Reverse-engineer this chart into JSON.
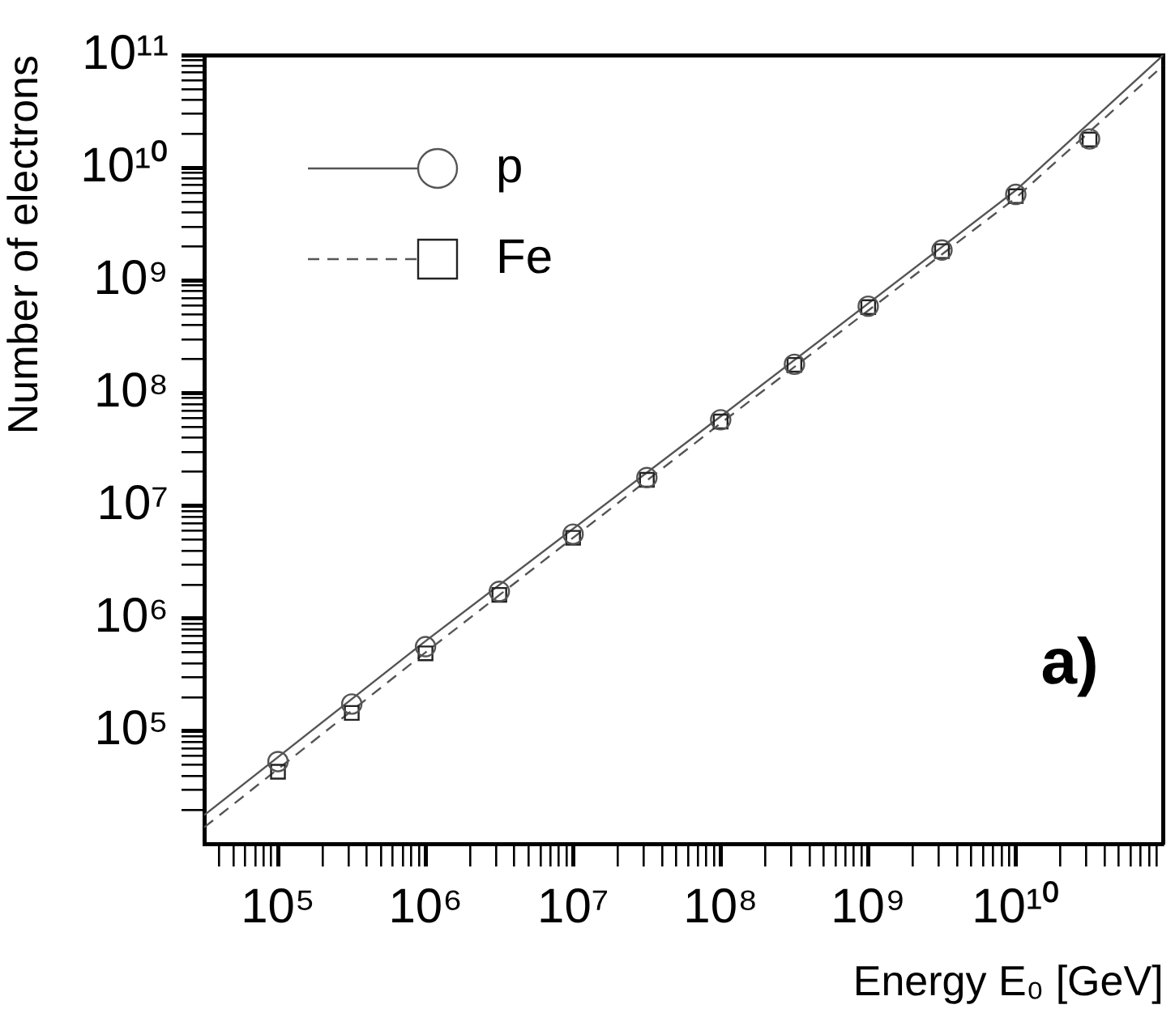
{
  "chart_data": {
    "type": "scatter",
    "xlabel": "Energy E₀ [GeV]",
    "ylabel": "Number of electrons",
    "annotations": [
      "a)"
    ],
    "log": "xy",
    "grid": false,
    "legend": "top left",
    "xlim": [
      31623,
      100000000000.0
    ],
    "ylim": [
      10000.0,
      100000000000.0
    ],
    "xticks": [
      {
        "value": 40000.0,
        "label": null
      },
      {
        "value": 50000.0,
        "label": null
      },
      {
        "value": 60000.0,
        "label": null
      },
      {
        "value": 70000.0,
        "label": null
      },
      {
        "value": 80000.0,
        "label": null
      },
      {
        "value": 90000.0,
        "label": null
      },
      {
        "value": 100000.0,
        "label": "10⁵"
      },
      {
        "value": 200000.0,
        "label": null
      },
      {
        "value": 300000.0,
        "label": null
      },
      {
        "value": 400000.0,
        "label": null
      },
      {
        "value": 500000.0,
        "label": null
      },
      {
        "value": 600000.0,
        "label": null
      },
      {
        "value": 700000.0,
        "label": null
      },
      {
        "value": 800000.0,
        "label": null
      },
      {
        "value": 900000.0,
        "label": null
      },
      {
        "value": 1000000.0,
        "label": "10⁶"
      },
      {
        "value": 2000000.0,
        "label": null
      },
      {
        "value": 3000000.0,
        "label": null
      },
      {
        "value": 4000000.0,
        "label": null
      },
      {
        "value": 5000000.0,
        "label": null
      },
      {
        "value": 6000000.0,
        "label": null
      },
      {
        "value": 7000000.0,
        "label": null
      },
      {
        "value": 8000000.0,
        "label": null
      },
      {
        "value": 9000000.0,
        "label": null
      },
      {
        "value": 10000000.0,
        "label": "10⁷"
      },
      {
        "value": 20000000.0,
        "label": null
      },
      {
        "value": 30000000.0,
        "label": null
      },
      {
        "value": 40000000.0,
        "label": null
      },
      {
        "value": 50000000.0,
        "label": null
      },
      {
        "value": 60000000.0,
        "label": null
      },
      {
        "value": 70000000.0,
        "label": null
      },
      {
        "value": 80000000.0,
        "label": null
      },
      {
        "value": 90000000.0,
        "label": null
      },
      {
        "value": 100000000.0,
        "label": "10⁸"
      },
      {
        "value": 200000000.0,
        "label": null
      },
      {
        "value": 300000000.0,
        "label": null
      },
      {
        "value": 400000000.0,
        "label": null
      },
      {
        "value": 500000000.0,
        "label": null
      },
      {
        "value": 600000000.0,
        "label": null
      },
      {
        "value": 700000000.0,
        "label": null
      },
      {
        "value": 800000000.0,
        "label": null
      },
      {
        "value": 900000000.0,
        "label": null
      },
      {
        "value": 1000000000.0,
        "label": "10⁹"
      },
      {
        "value": 2000000000.0,
        "label": null
      },
      {
        "value": 3000000000.0,
        "label": null
      },
      {
        "value": 4000000000.0,
        "label": null
      },
      {
        "value": 5000000000.0,
        "label": null
      },
      {
        "value": 6000000000.0,
        "label": null
      },
      {
        "value": 7000000000.0,
        "label": null
      },
      {
        "value": 8000000000.0,
        "label": null
      },
      {
        "value": 9000000000.0,
        "label": null
      },
      {
        "value": 10000000000.0,
        "label": "10¹⁰"
      },
      {
        "value": 20000000000.0,
        "label": null
      },
      {
        "value": 30000000000.0,
        "label": null
      },
      {
        "value": 40000000000.0,
        "label": null
      },
      {
        "value": 50000000000.0,
        "label": null
      },
      {
        "value": 60000000000.0,
        "label": null
      },
      {
        "value": 70000000000.0,
        "label": null
      },
      {
        "value": 80000000000.0,
        "label": null
      },
      {
        "value": 90000000000.0,
        "label": null
      }
    ],
    "yticks": [
      {
        "value": 20000.0,
        "label": null
      },
      {
        "value": 30000.0,
        "label": null
      },
      {
        "value": 40000.0,
        "label": null
      },
      {
        "value": 50000.0,
        "label": null
      },
      {
        "value": 60000.0,
        "label": null
      },
      {
        "value": 70000.0,
        "label": null
      },
      {
        "value": 80000.0,
        "label": null
      },
      {
        "value": 90000.0,
        "label": null
      },
      {
        "value": 100000.0,
        "label": "10⁵"
      },
      {
        "value": 200000.0,
        "label": null
      },
      {
        "value": 300000.0,
        "label": null
      },
      {
        "value": 400000.0,
        "label": null
      },
      {
        "value": 500000.0,
        "label": null
      },
      {
        "value": 600000.0,
        "label": null
      },
      {
        "value": 700000.0,
        "label": null
      },
      {
        "value": 800000.0,
        "label": null
      },
      {
        "value": 900000.0,
        "label": null
      },
      {
        "value": 1000000.0,
        "label": "10⁶"
      },
      {
        "value": 2000000.0,
        "label": null
      },
      {
        "value": 3000000.0,
        "label": null
      },
      {
        "value": 4000000.0,
        "label": null
      },
      {
        "value": 5000000.0,
        "label": null
      },
      {
        "value": 6000000.0,
        "label": null
      },
      {
        "value": 7000000.0,
        "label": null
      },
      {
        "value": 8000000.0,
        "label": null
      },
      {
        "value": 9000000.0,
        "label": null
      },
      {
        "value": 10000000.0,
        "label": "10⁷"
      },
      {
        "value": 20000000.0,
        "label": null
      },
      {
        "value": 30000000.0,
        "label": null
      },
      {
        "value": 40000000.0,
        "label": null
      },
      {
        "value": 50000000.0,
        "label": null
      },
      {
        "value": 60000000.0,
        "label": null
      },
      {
        "value": 70000000.0,
        "label": null
      },
      {
        "value": 80000000.0,
        "label": null
      },
      {
        "value": 90000000.0,
        "label": null
      },
      {
        "value": 100000000.0,
        "label": "10⁸"
      },
      {
        "value": 200000000.0,
        "label": null
      },
      {
        "value": 300000000.0,
        "label": null
      },
      {
        "value": 400000000.0,
        "label": null
      },
      {
        "value": 500000000.0,
        "label": null
      },
      {
        "value": 600000000.0,
        "label": null
      },
      {
        "value": 700000000.0,
        "label": null
      },
      {
        "value": 800000000.0,
        "label": null
      },
      {
        "value": 900000000.0,
        "label": null
      },
      {
        "value": 1000000000.0,
        "label": "10⁹"
      },
      {
        "value": 2000000000.0,
        "label": null
      },
      {
        "value": 3000000000.0,
        "label": null
      },
      {
        "value": 4000000000.0,
        "label": null
      },
      {
        "value": 5000000000.0,
        "label": null
      },
      {
        "value": 6000000000.0,
        "label": null
      },
      {
        "value": 7000000000.0,
        "label": null
      },
      {
        "value": 8000000000.0,
        "label": null
      },
      {
        "value": 9000000000.0,
        "label": null
      },
      {
        "value": 10000000000.0,
        "label": "10¹⁰"
      },
      {
        "value": 20000000000.0,
        "label": null
      },
      {
        "value": 30000000000.0,
        "label": null
      },
      {
        "value": 40000000000.0,
        "label": null
      },
      {
        "value": 50000000000.0,
        "label": null
      },
      {
        "value": 60000000000.0,
        "label": null
      },
      {
        "value": 70000000000.0,
        "label": null
      },
      {
        "value": 80000000000.0,
        "label": null
      },
      {
        "value": 90000000000.0,
        "label": null
      },
      {
        "value": 100000000000.0,
        "label": "10¹¹"
      }
    ],
    "series": [
      {
        "name": "p",
        "type": "scatter",
        "marker": "circle",
        "color": "#555555",
        "x": [
          100000.0,
          316228,
          1000000.0,
          3162278,
          10000000.0,
          31622777,
          100000000.0,
          316227766,
          1000000000.0,
          3162277660,
          10000000000.0,
          31622776602
        ],
        "values": [
          53700,
          174000,
          562000,
          1740000.0,
          5600000.0,
          17800000.0,
          58000000.0,
          180000000.0,
          590000000.0,
          1860000000.0,
          5800000000.0,
          18000000000.0
        ]
      },
      {
        "name": "Fe",
        "type": "scatter",
        "marker": "square",
        "color": "#222222",
        "x": [
          100000.0,
          316228,
          1000000.0,
          3162278,
          10000000.0,
          31622777,
          100000000.0,
          316227766,
          1000000000.0,
          3162277660,
          10000000000.0,
          31622776602
        ],
        "values": [
          43600,
          145000,
          490000,
          1620000.0,
          5200000.0,
          17000000.0,
          56000000.0,
          178000000.0,
          580000000.0,
          1820000000.0,
          5600000000.0,
          17800000000.0
        ]
      },
      {
        "type": "line",
        "line_style": "solid",
        "marker": "none",
        "color": "#555555",
        "x": [
          31623,
          1000000.0,
          100000000.0,
          10000000000.0,
          100000000000.0
        ],
        "values": [
          18000.0,
          630000.0,
          62000000.0,
          6300000000.0,
          100000000000.0
        ]
      },
      {
        "type": "line",
        "line_style": "dashed",
        "marker": "none",
        "color": "#555555",
        "x": [
          31623,
          1000000.0,
          100000000.0,
          10000000000.0,
          100000000000.0
        ],
        "values": [
          14000.0,
          500000.0,
          54000000.0,
          5400000000.0,
          81000000000.0
        ]
      }
    ]
  }
}
